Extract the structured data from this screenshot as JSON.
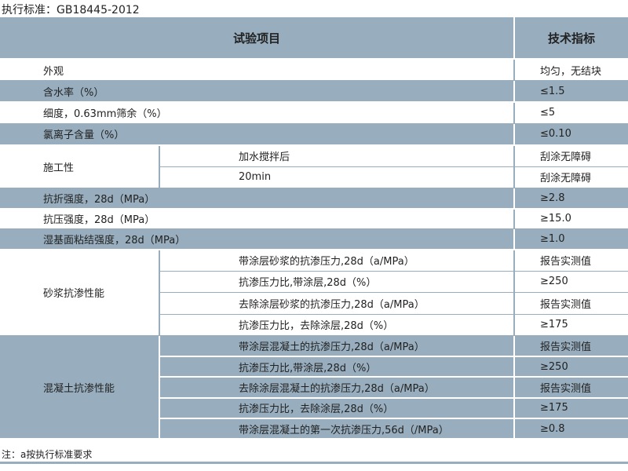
{
  "standard": "执行标准：GB18445-2012",
  "header": {
    "item": "试验项目",
    "spec": "技术指标"
  },
  "colors": {
    "band": "#98aebe"
  },
  "groups": [
    {
      "band": "white",
      "label": "外观",
      "items": [
        {
          "sub": null,
          "value": "均匀，无结块"
        }
      ]
    },
    {
      "band": "grey",
      "label": "含水率（%）",
      "items": [
        {
          "sub": null,
          "value": "≤1.5"
        }
      ]
    },
    {
      "band": "white",
      "label": "细度，0.63mm筛余（%）",
      "items": [
        {
          "sub": null,
          "value": "≤5"
        }
      ]
    },
    {
      "band": "grey",
      "label": "氯离子含量（%）",
      "items": [
        {
          "sub": null,
          "value": "≤0.10"
        }
      ]
    },
    {
      "band": "white",
      "label": "施工性",
      "items": [
        {
          "sub": "加水搅拌后",
          "value": "刮涂无障碍"
        },
        {
          "sub": "20min",
          "value": "刮涂无障碍"
        }
      ]
    },
    {
      "band": "grey",
      "label": "抗折强度，28d（MPa）",
      "items": [
        {
          "sub": null,
          "value": "≥2.8"
        }
      ]
    },
    {
      "band": "white",
      "label": "抗压强度，28d（MPa）",
      "items": [
        {
          "sub": null,
          "value": "≥15.0"
        }
      ]
    },
    {
      "band": "grey",
      "label": "湿基面粘结强度，28d（MPa）",
      "items": [
        {
          "sub": null,
          "value": "≥1.0"
        }
      ]
    },
    {
      "band": "white",
      "label": "砂浆抗渗性能",
      "items": [
        {
          "sub": "带涂层砂浆的抗渗压力,28d（a/MPa）",
          "value": "报告实测值"
        },
        {
          "sub": "抗渗压力比,带涂层,28d（%）",
          "value": "≥250"
        },
        {
          "sub": "去除涂层砂浆的抗渗压力,28d（a/MPa）",
          "value": "报告实测值"
        },
        {
          "sub": "抗渗压力比，去除涂层,28d（%）",
          "value": "≥175"
        }
      ]
    },
    {
      "band": "grey",
      "label": "混凝土抗渗性能",
      "items": [
        {
          "sub": "带涂层混凝土的抗渗压力,28d（a/MPa）",
          "value": "报告实测值"
        },
        {
          "sub": "抗渗压力比,带涂层,28d（%）",
          "value": "≥250"
        },
        {
          "sub": "去除涂层混凝土的抗渗压力,28d（a/MPa）",
          "value": "报告实测值"
        },
        {
          "sub": "抗渗压力比，去除涂层,28d（%）",
          "value": "≥175"
        },
        {
          "sub": "带涂层混凝土的第一次抗渗压力,56d（/MPa）",
          "value": "≥0.8"
        }
      ]
    }
  ],
  "note": "注：a按执行标准要求"
}
